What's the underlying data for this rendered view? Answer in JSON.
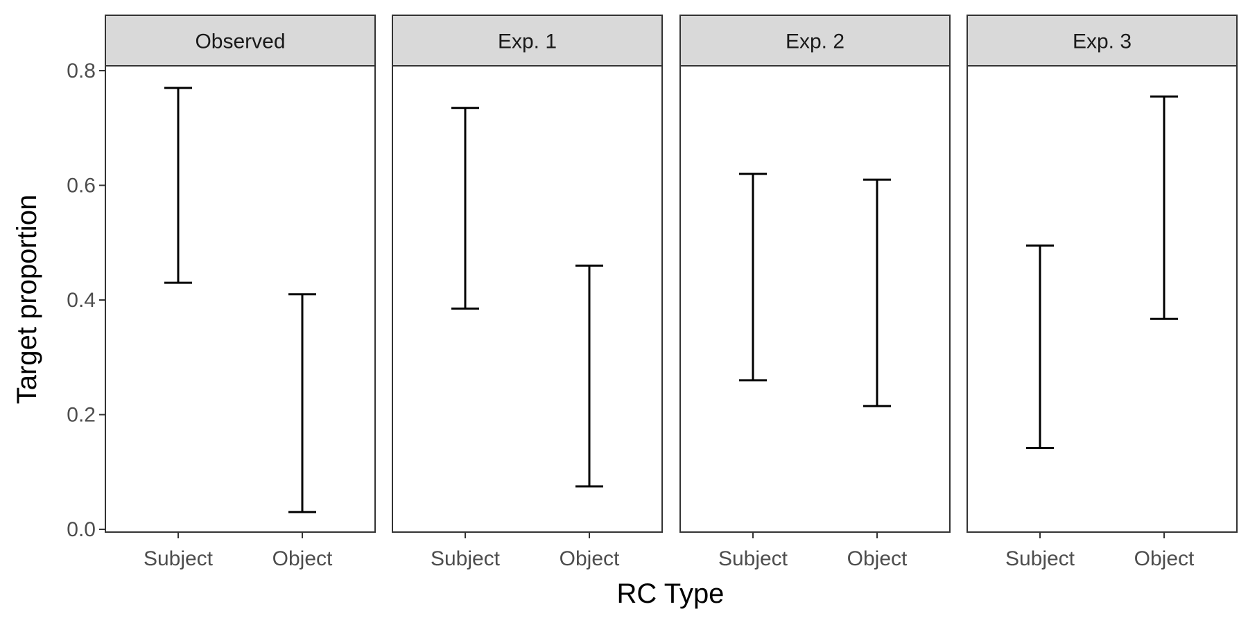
{
  "chart_data": {
    "type": "errorbar",
    "title": "",
    "xlabel": "RC Type",
    "ylabel": "Target proportion",
    "ylim": [
      -0.005,
      0.81
    ],
    "yticks": [
      0.0,
      0.2,
      0.4,
      0.6,
      0.8
    ],
    "ytick_labels": [
      "0.0",
      "0.2",
      "0.4",
      "0.6",
      "0.8"
    ],
    "categories": [
      "Subject",
      "Object"
    ],
    "grid": false,
    "legend": "none",
    "panels": [
      {
        "name": "Observed",
        "bars": [
          {
            "category": "Subject",
            "lower": 0.43,
            "upper": 0.77
          },
          {
            "category": "Object",
            "lower": 0.03,
            "upper": 0.41
          }
        ]
      },
      {
        "name": "Exp. 1",
        "bars": [
          {
            "category": "Subject",
            "lower": 0.385,
            "upper": 0.735
          },
          {
            "category": "Object",
            "lower": 0.075,
            "upper": 0.46
          }
        ]
      },
      {
        "name": "Exp. 2",
        "bars": [
          {
            "category": "Subject",
            "lower": 0.26,
            "upper": 0.62
          },
          {
            "category": "Object",
            "lower": 0.215,
            "upper": 0.61
          }
        ]
      },
      {
        "name": "Exp. 3",
        "bars": [
          {
            "category": "Subject",
            "lower": 0.142,
            "upper": 0.495
          },
          {
            "category": "Object",
            "lower": 0.367,
            "upper": 0.755
          }
        ]
      }
    ]
  }
}
